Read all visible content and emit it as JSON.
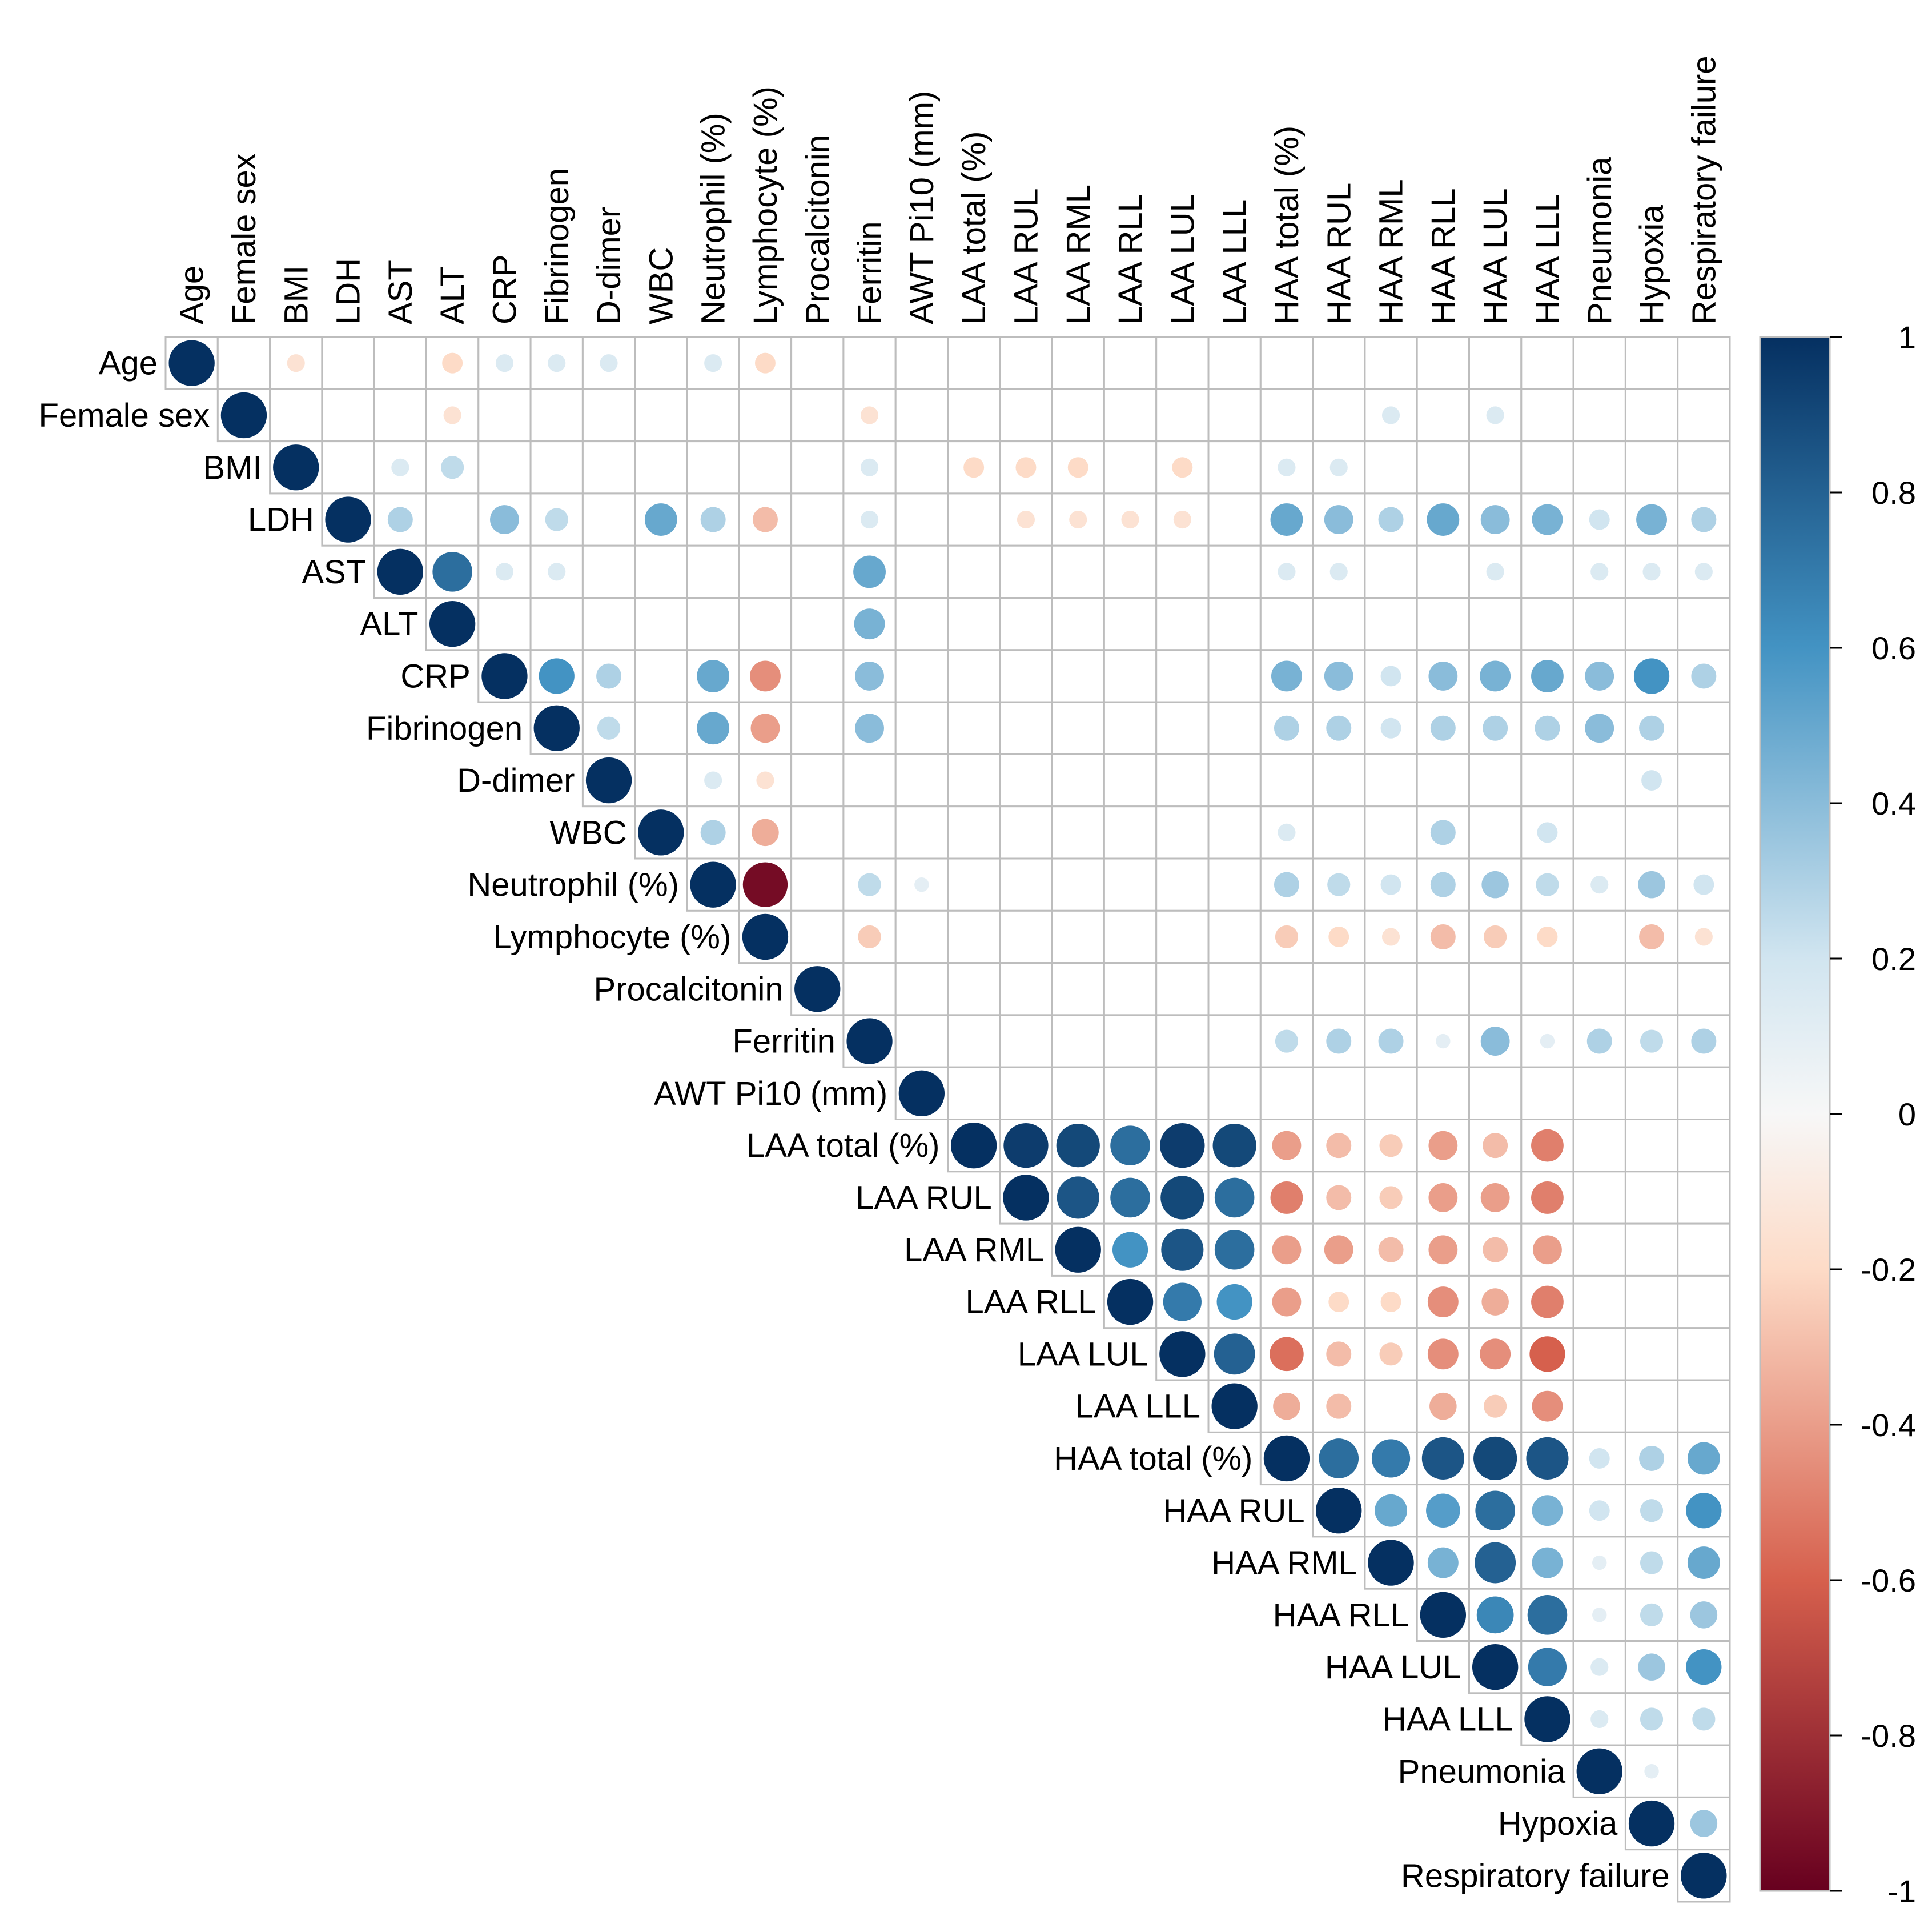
{
  "chart_data": {
    "type": "heatmap",
    "subtype": "correlation-matrix-upper",
    "variables": [
      "Age",
      "Female sex",
      "BMI",
      "LDH",
      "AST",
      "ALT",
      "CRP",
      "Fibrinogen",
      "D-dimer",
      "WBC",
      "Neutrophil (%)",
      "Lymphocyte (%)",
      "Procalcitonin",
      "Ferritin",
      "AWT Pi10 (mm)",
      "LAA total (%)",
      "LAA RUL",
      "LAA RML",
      "LAA RLL",
      "LAA LUL",
      "LAA LLL",
      "HAA total (%)",
      "HAA RUL",
      "HAA RML",
      "HAA RLL",
      "HAA LUL",
      "HAA LLL",
      "Pneumonia",
      "Hypoxia",
      "Respiratory failure"
    ],
    "correlations": [
      {
        "row": "Age",
        "col": "BMI",
        "r": -0.15
      },
      {
        "row": "Age",
        "col": "ALT",
        "r": -0.2
      },
      {
        "row": "Age",
        "col": "CRP",
        "r": 0.15
      },
      {
        "row": "Age",
        "col": "Fibrinogen",
        "r": 0.15
      },
      {
        "row": "Age",
        "col": "D-dimer",
        "r": 0.15
      },
      {
        "row": "Age",
        "col": "Neutrophil (%)",
        "r": 0.15
      },
      {
        "row": "Age",
        "col": "Lymphocyte (%)",
        "r": -0.2
      },
      {
        "row": "Female sex",
        "col": "ALT",
        "r": -0.15
      },
      {
        "row": "Female sex",
        "col": "Ferritin",
        "r": -0.15
      },
      {
        "row": "Female sex",
        "col": "HAA RML",
        "r": 0.15
      },
      {
        "row": "Female sex",
        "col": "HAA LUL",
        "r": 0.15
      },
      {
        "row": "BMI",
        "col": "AST",
        "r": 0.15
      },
      {
        "row": "BMI",
        "col": "ALT",
        "r": 0.25
      },
      {
        "row": "BMI",
        "col": "Ferritin",
        "r": 0.15
      },
      {
        "row": "BMI",
        "col": "LAA total (%)",
        "r": -0.2
      },
      {
        "row": "BMI",
        "col": "LAA RUL",
        "r": -0.2
      },
      {
        "row": "BMI",
        "col": "LAA RML",
        "r": -0.2
      },
      {
        "row": "BMI",
        "col": "LAA LUL",
        "r": -0.2
      },
      {
        "row": "BMI",
        "col": "HAA total (%)",
        "r": 0.15
      },
      {
        "row": "BMI",
        "col": "HAA RUL",
        "r": 0.15
      },
      {
        "row": "LDH",
        "col": "AST",
        "r": 0.3
      },
      {
        "row": "LDH",
        "col": "CRP",
        "r": 0.4
      },
      {
        "row": "LDH",
        "col": "Fibrinogen",
        "r": 0.25
      },
      {
        "row": "LDH",
        "col": "WBC",
        "r": 0.5
      },
      {
        "row": "LDH",
        "col": "Neutrophil (%)",
        "r": 0.3
      },
      {
        "row": "LDH",
        "col": "Lymphocyte (%)",
        "r": -0.3
      },
      {
        "row": "LDH",
        "col": "Ferritin",
        "r": 0.15
      },
      {
        "row": "LDH",
        "col": "LAA RUL",
        "r": -0.15
      },
      {
        "row": "LDH",
        "col": "LAA RML",
        "r": -0.15
      },
      {
        "row": "LDH",
        "col": "LAA RLL",
        "r": -0.15
      },
      {
        "row": "LDH",
        "col": "LAA LUL",
        "r": -0.15
      },
      {
        "row": "LDH",
        "col": "HAA total (%)",
        "r": 0.5
      },
      {
        "row": "LDH",
        "col": "HAA RUL",
        "r": 0.4
      },
      {
        "row": "LDH",
        "col": "HAA RML",
        "r": 0.3
      },
      {
        "row": "LDH",
        "col": "HAA RLL",
        "r": 0.5
      },
      {
        "row": "LDH",
        "col": "HAA LUL",
        "r": 0.4
      },
      {
        "row": "LDH",
        "col": "HAA LLL",
        "r": 0.45
      },
      {
        "row": "LDH",
        "col": "Pneumonia",
        "r": 0.2
      },
      {
        "row": "LDH",
        "col": "Hypoxia",
        "r": 0.45
      },
      {
        "row": "LDH",
        "col": "Respiratory failure",
        "r": 0.3
      },
      {
        "row": "AST",
        "col": "ALT",
        "r": 0.75
      },
      {
        "row": "AST",
        "col": "CRP",
        "r": 0.15
      },
      {
        "row": "AST",
        "col": "Fibrinogen",
        "r": 0.15
      },
      {
        "row": "AST",
        "col": "Ferritin",
        "r": 0.5
      },
      {
        "row": "AST",
        "col": "HAA total (%)",
        "r": 0.15
      },
      {
        "row": "AST",
        "col": "HAA RUL",
        "r": 0.15
      },
      {
        "row": "AST",
        "col": "HAA LUL",
        "r": 0.15
      },
      {
        "row": "AST",
        "col": "Pneumonia",
        "r": 0.15
      },
      {
        "row": "AST",
        "col": "Hypoxia",
        "r": 0.15
      },
      {
        "row": "AST",
        "col": "Respiratory failure",
        "r": 0.15
      },
      {
        "row": "ALT",
        "col": "Ferritin",
        "r": 0.45
      },
      {
        "row": "CRP",
        "col": "Fibrinogen",
        "r": 0.6
      },
      {
        "row": "CRP",
        "col": "D-dimer",
        "r": 0.3
      },
      {
        "row": "CRP",
        "col": "Neutrophil (%)",
        "r": 0.5
      },
      {
        "row": "CRP",
        "col": "Lymphocyte (%)",
        "r": -0.45
      },
      {
        "row": "CRP",
        "col": "Ferritin",
        "r": 0.4
      },
      {
        "row": "CRP",
        "col": "HAA total (%)",
        "r": 0.45
      },
      {
        "row": "CRP",
        "col": "HAA RUL",
        "r": 0.4
      },
      {
        "row": "CRP",
        "col": "HAA RML",
        "r": 0.2
      },
      {
        "row": "CRP",
        "col": "HAA RLL",
        "r": 0.4
      },
      {
        "row": "CRP",
        "col": "HAA LUL",
        "r": 0.45
      },
      {
        "row": "CRP",
        "col": "HAA LLL",
        "r": 0.5
      },
      {
        "row": "CRP",
        "col": "Pneumonia",
        "r": 0.4
      },
      {
        "row": "CRP",
        "col": "Hypoxia",
        "r": 0.6
      },
      {
        "row": "CRP",
        "col": "Respiratory failure",
        "r": 0.3
      },
      {
        "row": "Fibrinogen",
        "col": "D-dimer",
        "r": 0.25
      },
      {
        "row": "Fibrinogen",
        "col": "Neutrophil (%)",
        "r": 0.5
      },
      {
        "row": "Fibrinogen",
        "col": "Lymphocyte (%)",
        "r": -0.4
      },
      {
        "row": "Fibrinogen",
        "col": "Ferritin",
        "r": 0.4
      },
      {
        "row": "Fibrinogen",
        "col": "HAA total (%)",
        "r": 0.3
      },
      {
        "row": "Fibrinogen",
        "col": "HAA RUL",
        "r": 0.3
      },
      {
        "row": "Fibrinogen",
        "col": "HAA RML",
        "r": 0.2
      },
      {
        "row": "Fibrinogen",
        "col": "HAA RLL",
        "r": 0.3
      },
      {
        "row": "Fibrinogen",
        "col": "HAA LUL",
        "r": 0.3
      },
      {
        "row": "Fibrinogen",
        "col": "HAA LLL",
        "r": 0.3
      },
      {
        "row": "Fibrinogen",
        "col": "Pneumonia",
        "r": 0.4
      },
      {
        "row": "Fibrinogen",
        "col": "Hypoxia",
        "r": 0.3
      },
      {
        "row": "D-dimer",
        "col": "Neutrophil (%)",
        "r": 0.15
      },
      {
        "row": "D-dimer",
        "col": "Lymphocyte (%)",
        "r": -0.15
      },
      {
        "row": "D-dimer",
        "col": "Hypoxia",
        "r": 0.2
      },
      {
        "row": "WBC",
        "col": "Neutrophil (%)",
        "r": 0.3
      },
      {
        "row": "WBC",
        "col": "Lymphocyte (%)",
        "r": -0.35
      },
      {
        "row": "WBC",
        "col": "HAA total (%)",
        "r": 0.15
      },
      {
        "row": "WBC",
        "col": "HAA RLL",
        "r": 0.3
      },
      {
        "row": "WBC",
        "col": "HAA LLL",
        "r": 0.2
      },
      {
        "row": "Neutrophil (%)",
        "col": "Lymphocyte (%)",
        "r": -0.95
      },
      {
        "row": "Neutrophil (%)",
        "col": "Ferritin",
        "r": 0.25
      },
      {
        "row": "Neutrophil (%)",
        "col": "AWT Pi10 (mm)",
        "r": 0.1
      },
      {
        "row": "Neutrophil (%)",
        "col": "HAA total (%)",
        "r": 0.3
      },
      {
        "row": "Neutrophil (%)",
        "col": "HAA RUL",
        "r": 0.25
      },
      {
        "row": "Neutrophil (%)",
        "col": "HAA RML",
        "r": 0.2
      },
      {
        "row": "Neutrophil (%)",
        "col": "HAA RLL",
        "r": 0.3
      },
      {
        "row": "Neutrophil (%)",
        "col": "HAA LUL",
        "r": 0.35
      },
      {
        "row": "Neutrophil (%)",
        "col": "HAA LLL",
        "r": 0.25
      },
      {
        "row": "Neutrophil (%)",
        "col": "Pneumonia",
        "r": 0.15
      },
      {
        "row": "Neutrophil (%)",
        "col": "Hypoxia",
        "r": 0.35
      },
      {
        "row": "Neutrophil (%)",
        "col": "Respiratory failure",
        "r": 0.2
      },
      {
        "row": "Lymphocyte (%)",
        "col": "Ferritin",
        "r": -0.25
      },
      {
        "row": "Lymphocyte (%)",
        "col": "HAA total (%)",
        "r": -0.25
      },
      {
        "row": "Lymphocyte (%)",
        "col": "HAA RUL",
        "r": -0.2
      },
      {
        "row": "Lymphocyte (%)",
        "col": "HAA RML",
        "r": -0.15
      },
      {
        "row": "Lymphocyte (%)",
        "col": "HAA RLL",
        "r": -0.3
      },
      {
        "row": "Lymphocyte (%)",
        "col": "HAA LUL",
        "r": -0.25
      },
      {
        "row": "Lymphocyte (%)",
        "col": "HAA LLL",
        "r": -0.2
      },
      {
        "row": "Lymphocyte (%)",
        "col": "Hypoxia",
        "r": -0.3
      },
      {
        "row": "Lymphocyte (%)",
        "col": "Respiratory failure",
        "r": -0.15
      },
      {
        "row": "Ferritin",
        "col": "HAA total (%)",
        "r": 0.25
      },
      {
        "row": "Ferritin",
        "col": "HAA RUL",
        "r": 0.3
      },
      {
        "row": "Ferritin",
        "col": "HAA RML",
        "r": 0.3
      },
      {
        "row": "Ferritin",
        "col": "HAA RLL",
        "r": 0.1
      },
      {
        "row": "Ferritin",
        "col": "HAA LUL",
        "r": 0.4
      },
      {
        "row": "Ferritin",
        "col": "HAA LLL",
        "r": 0.1
      },
      {
        "row": "Ferritin",
        "col": "Pneumonia",
        "r": 0.3
      },
      {
        "row": "Ferritin",
        "col": "Hypoxia",
        "r": 0.25
      },
      {
        "row": "Ferritin",
        "col": "Respiratory failure",
        "r": 0.3
      },
      {
        "row": "LAA total (%)",
        "col": "LAA RUL",
        "r": 0.95
      },
      {
        "row": "LAA total (%)",
        "col": "LAA RML",
        "r": 0.9
      },
      {
        "row": "LAA total (%)",
        "col": "LAA RLL",
        "r": 0.75
      },
      {
        "row": "LAA total (%)",
        "col": "LAA LUL",
        "r": 0.95
      },
      {
        "row": "LAA total (%)",
        "col": "LAA LLL",
        "r": 0.9
      },
      {
        "row": "LAA total (%)",
        "col": "HAA total (%)",
        "r": -0.4
      },
      {
        "row": "LAA total (%)",
        "col": "HAA RUL",
        "r": -0.3
      },
      {
        "row": "LAA total (%)",
        "col": "HAA RML",
        "r": -0.25
      },
      {
        "row": "LAA total (%)",
        "col": "HAA RLL",
        "r": -0.4
      },
      {
        "row": "LAA total (%)",
        "col": "HAA LUL",
        "r": -0.3
      },
      {
        "row": "LAA total (%)",
        "col": "HAA LLL",
        "r": -0.5
      },
      {
        "row": "LAA RUL",
        "col": "LAA RML",
        "r": 0.85
      },
      {
        "row": "LAA RUL",
        "col": "LAA RLL",
        "r": 0.75
      },
      {
        "row": "LAA RUL",
        "col": "LAA LUL",
        "r": 0.9
      },
      {
        "row": "LAA RUL",
        "col": "LAA LLL",
        "r": 0.75
      },
      {
        "row": "LAA RUL",
        "col": "HAA total (%)",
        "r": -0.5
      },
      {
        "row": "LAA RUL",
        "col": "HAA RUL",
        "r": -0.3
      },
      {
        "row": "LAA RUL",
        "col": "HAA RML",
        "r": -0.25
      },
      {
        "row": "LAA RUL",
        "col": "HAA RLL",
        "r": -0.4
      },
      {
        "row": "LAA RUL",
        "col": "HAA LUL",
        "r": -0.4
      },
      {
        "row": "LAA RUL",
        "col": "HAA LLL",
        "r": -0.5
      },
      {
        "row": "LAA RML",
        "col": "LAA RLL",
        "r": 0.6
      },
      {
        "row": "LAA RML",
        "col": "LAA LUL",
        "r": 0.85
      },
      {
        "row": "LAA RML",
        "col": "LAA LLL",
        "r": 0.75
      },
      {
        "row": "LAA RML",
        "col": "HAA total (%)",
        "r": -0.4
      },
      {
        "row": "LAA RML",
        "col": "HAA RUL",
        "r": -0.4
      },
      {
        "row": "LAA RML",
        "col": "HAA RML",
        "r": -0.3
      },
      {
        "row": "LAA RML",
        "col": "HAA RLL",
        "r": -0.4
      },
      {
        "row": "LAA RML",
        "col": "HAA LUL",
        "r": -0.3
      },
      {
        "row": "LAA RML",
        "col": "HAA LLL",
        "r": -0.4
      },
      {
        "row": "LAA RLL",
        "col": "LAA LUL",
        "r": 0.7
      },
      {
        "row": "LAA RLL",
        "col": "LAA LLL",
        "r": 0.6
      },
      {
        "row": "LAA RLL",
        "col": "HAA total (%)",
        "r": -0.4
      },
      {
        "row": "LAA RLL",
        "col": "HAA RUL",
        "r": -0.2
      },
      {
        "row": "LAA RLL",
        "col": "HAA RML",
        "r": -0.2
      },
      {
        "row": "LAA RLL",
        "col": "HAA RLL",
        "r": -0.45
      },
      {
        "row": "LAA RLL",
        "col": "HAA LUL",
        "r": -0.35
      },
      {
        "row": "LAA RLL",
        "col": "HAA LLL",
        "r": -0.5
      },
      {
        "row": "LAA LUL",
        "col": "LAA LLL",
        "r": 0.8
      },
      {
        "row": "LAA LUL",
        "col": "HAA total (%)",
        "r": -0.55
      },
      {
        "row": "LAA LUL",
        "col": "HAA RUL",
        "r": -0.3
      },
      {
        "row": "LAA LUL",
        "col": "HAA RML",
        "r": -0.25
      },
      {
        "row": "LAA LUL",
        "col": "HAA RLL",
        "r": -0.45
      },
      {
        "row": "LAA LUL",
        "col": "HAA LUL",
        "r": -0.45
      },
      {
        "row": "LAA LUL",
        "col": "HAA LLL",
        "r": -0.6
      },
      {
        "row": "LAA LLL",
        "col": "HAA total (%)",
        "r": -0.35
      },
      {
        "row": "LAA LLL",
        "col": "HAA RUL",
        "r": -0.3
      },
      {
        "row": "LAA LLL",
        "col": "HAA RLL",
        "r": -0.35
      },
      {
        "row": "LAA LLL",
        "col": "HAA LUL",
        "r": -0.25
      },
      {
        "row": "LAA LLL",
        "col": "HAA LLL",
        "r": -0.45
      },
      {
        "row": "HAA total (%)",
        "col": "HAA RUL",
        "r": 0.75
      },
      {
        "row": "HAA total (%)",
        "col": "HAA RML",
        "r": 0.7
      },
      {
        "row": "HAA total (%)",
        "col": "HAA RLL",
        "r": 0.85
      },
      {
        "row": "HAA total (%)",
        "col": "HAA LUL",
        "r": 0.9
      },
      {
        "row": "HAA total (%)",
        "col": "HAA LLL",
        "r": 0.85
      },
      {
        "row": "HAA total (%)",
        "col": "Pneumonia",
        "r": 0.2
      },
      {
        "row": "HAA total (%)",
        "col": "Hypoxia",
        "r": 0.3
      },
      {
        "row": "HAA total (%)",
        "col": "Respiratory failure",
        "r": 0.5
      },
      {
        "row": "HAA RUL",
        "col": "HAA RML",
        "r": 0.5
      },
      {
        "row": "HAA RUL",
        "col": "HAA RLL",
        "r": 0.55
      },
      {
        "row": "HAA RUL",
        "col": "HAA LUL",
        "r": 0.75
      },
      {
        "row": "HAA RUL",
        "col": "HAA LLL",
        "r": 0.45
      },
      {
        "row": "HAA RUL",
        "col": "Pneumonia",
        "r": 0.2
      },
      {
        "row": "HAA RUL",
        "col": "Hypoxia",
        "r": 0.25
      },
      {
        "row": "HAA RUL",
        "col": "Respiratory failure",
        "r": 0.6
      },
      {
        "row": "HAA RML",
        "col": "HAA RLL",
        "r": 0.45
      },
      {
        "row": "HAA RML",
        "col": "HAA LUL",
        "r": 0.8
      },
      {
        "row": "HAA RML",
        "col": "HAA LLL",
        "r": 0.45
      },
      {
        "row": "HAA RML",
        "col": "Pneumonia",
        "r": 0.1
      },
      {
        "row": "HAA RML",
        "col": "Hypoxia",
        "r": 0.25
      },
      {
        "row": "HAA RML",
        "col": "Respiratory failure",
        "r": 0.5
      },
      {
        "row": "HAA RLL",
        "col": "HAA LUL",
        "r": 0.65
      },
      {
        "row": "HAA RLL",
        "col": "HAA LLL",
        "r": 0.75
      },
      {
        "row": "HAA RLL",
        "col": "Pneumonia",
        "r": 0.1
      },
      {
        "row": "HAA RLL",
        "col": "Hypoxia",
        "r": 0.25
      },
      {
        "row": "HAA RLL",
        "col": "Respiratory failure",
        "r": 0.35
      },
      {
        "row": "HAA LUL",
        "col": "HAA LLL",
        "r": 0.7
      },
      {
        "row": "HAA LUL",
        "col": "Pneumonia",
        "r": 0.15
      },
      {
        "row": "HAA LUL",
        "col": "Hypoxia",
        "r": 0.35
      },
      {
        "row": "HAA LUL",
        "col": "Respiratory failure",
        "r": 0.6
      },
      {
        "row": "HAA LLL",
        "col": "Pneumonia",
        "r": 0.15
      },
      {
        "row": "HAA LLL",
        "col": "Hypoxia",
        "r": 0.25
      },
      {
        "row": "HAA LLL",
        "col": "Respiratory failure",
        "r": 0.25
      },
      {
        "row": "Pneumonia",
        "col": "Hypoxia",
        "r": 0.1
      },
      {
        "row": "Hypoxia",
        "col": "Respiratory failure",
        "r": 0.35
      }
    ],
    "diagonal_value": 1,
    "colorbar": {
      "range": [
        -1,
        1
      ],
      "ticks": [
        "1",
        "0.8",
        "0.6",
        "0.4",
        "0.2",
        "0",
        "-0.2",
        "-0.4",
        "-0.6",
        "-0.8",
        "-1"
      ],
      "colors": {
        "-1": "#67001f",
        "-0.6": "#d6604d",
        "-0.2": "#fddbc7",
        "0": "#f7f7f7",
        "0.2": "#d1e5f0",
        "0.6": "#4393c3",
        "1": "#053061"
      }
    }
  }
}
